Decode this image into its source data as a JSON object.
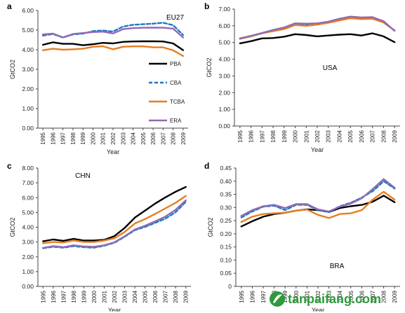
{
  "watermark": {
    "text": "tanpaifang.com",
    "colors": {
      "logo_green": "#2e9a3c",
      "logo_white": "#ffffff"
    }
  },
  "chart_data": [
    {
      "panel": "a",
      "type": "line",
      "title": "EU27",
      "xlabel": "Year",
      "ylabel": "GtCO2",
      "x": [
        "1995",
        "1996",
        "1997",
        "1998",
        "1999",
        "2000",
        "2001",
        "2002",
        "2003",
        "2004",
        "2005",
        "2006",
        "2007",
        "2008",
        "2009"
      ],
      "ylim": [
        0,
        6
      ],
      "yticks": [
        "0.00",
        "1.00",
        "2.00",
        "3.00",
        "4.00",
        "5.00",
        "6.00"
      ],
      "legend": "right",
      "series": [
        {
          "name": "PBA",
          "color": "#000000",
          "dash": "solid",
          "values": [
            4.25,
            4.38,
            4.3,
            4.3,
            4.23,
            4.28,
            4.35,
            4.32,
            4.4,
            4.42,
            4.43,
            4.43,
            4.42,
            4.32,
            3.98
          ]
        },
        {
          "name": "CBA",
          "color": "#1f77c4",
          "dash": "dashed",
          "values": [
            4.72,
            4.8,
            4.62,
            4.78,
            4.82,
            4.95,
            4.98,
            4.93,
            5.18,
            5.27,
            5.3,
            5.33,
            5.38,
            5.25,
            4.75
          ]
        },
        {
          "name": "TCBA",
          "color": "#e67e22",
          "dash": "solid",
          "values": [
            3.97,
            4.05,
            4.0,
            4.02,
            4.05,
            4.15,
            4.18,
            4.02,
            4.15,
            4.17,
            4.17,
            4.12,
            4.12,
            3.97,
            3.68
          ]
        },
        {
          "name": "ERA",
          "color": "#8e6bb3",
          "dash": "solid",
          "values": [
            4.78,
            4.82,
            4.63,
            4.8,
            4.85,
            4.9,
            4.92,
            4.83,
            5.05,
            5.1,
            5.12,
            5.13,
            5.12,
            5.08,
            4.62
          ]
        }
      ]
    },
    {
      "panel": "b",
      "type": "line",
      "title": "USA",
      "xlabel": "Year",
      "ylabel": "GtCO2",
      "x": [
        "1995",
        "1996",
        "1997",
        "1998",
        "1999",
        "2000",
        "2001",
        "2002",
        "2003",
        "2004",
        "2005",
        "2006",
        "2007",
        "2008",
        "2009"
      ],
      "ylim": [
        0,
        7
      ],
      "yticks": [
        "0.00",
        "1.00",
        "2.00",
        "3.00",
        "4.00",
        "5.00",
        "6.00",
        "7.00"
      ],
      "series": [
        {
          "name": "PBA",
          "color": "#000000",
          "dash": "solid",
          "values": [
            4.95,
            5.08,
            5.25,
            5.27,
            5.35,
            5.5,
            5.45,
            5.37,
            5.42,
            5.47,
            5.5,
            5.42,
            5.55,
            5.37,
            5.02
          ]
        },
        {
          "name": "CBA",
          "color": "#1f77c4",
          "dash": "dashed",
          "values": [
            5.25,
            5.37,
            5.57,
            5.72,
            5.85,
            6.1,
            6.05,
            6.1,
            6.22,
            6.38,
            6.5,
            6.45,
            6.42,
            6.22,
            5.72
          ]
        },
        {
          "name": "TCBA",
          "color": "#e67e22",
          "dash": "solid",
          "values": [
            5.22,
            5.37,
            5.55,
            5.68,
            5.8,
            6.05,
            6.0,
            6.07,
            6.18,
            6.32,
            6.45,
            6.4,
            6.42,
            6.2,
            5.72
          ]
        },
        {
          "name": "ERA",
          "color": "#8e6bb3",
          "dash": "solid",
          "values": [
            5.25,
            5.4,
            5.57,
            5.75,
            5.9,
            6.15,
            6.13,
            6.15,
            6.25,
            6.42,
            6.55,
            6.5,
            6.52,
            6.28,
            5.7
          ]
        }
      ]
    },
    {
      "panel": "c",
      "type": "line",
      "title": "CHN",
      "xlabel": "Year",
      "ylabel": "GtCO2",
      "x": [
        "1995",
        "1996",
        "1997",
        "1998",
        "1999",
        "2000",
        "2001",
        "2002",
        "2003",
        "2004",
        "2005",
        "2006",
        "2007",
        "2008",
        "2009"
      ],
      "ylim": [
        0,
        8
      ],
      "yticks": [
        "0.00",
        "1.00",
        "2.00",
        "3.00",
        "4.00",
        "5.00",
        "6.00",
        "7.00",
        "8.00"
      ],
      "series": [
        {
          "name": "PBA",
          "color": "#000000",
          "dash": "solid",
          "values": [
            3.05,
            3.17,
            3.08,
            3.22,
            3.1,
            3.1,
            3.15,
            3.4,
            3.95,
            4.65,
            5.12,
            5.6,
            6.02,
            6.4,
            6.72
          ]
        },
        {
          "name": "CBA",
          "color": "#1f77c4",
          "dash": "dashed",
          "values": [
            2.58,
            2.68,
            2.62,
            2.72,
            2.65,
            2.62,
            2.75,
            2.95,
            3.35,
            3.8,
            4.02,
            4.3,
            4.58,
            5.02,
            5.72
          ]
        },
        {
          "name": "TCBA",
          "color": "#e67e22",
          "dash": "solid",
          "values": [
            2.92,
            3.0,
            2.97,
            3.1,
            3.0,
            3.0,
            3.1,
            3.25,
            3.68,
            4.25,
            4.55,
            4.9,
            5.28,
            5.65,
            6.12
          ]
        },
        {
          "name": "ERA",
          "color": "#8e6bb3",
          "dash": "solid",
          "values": [
            2.6,
            2.72,
            2.65,
            2.78,
            2.7,
            2.68,
            2.78,
            2.98,
            3.38,
            3.85,
            4.1,
            4.4,
            4.72,
            5.18,
            5.82
          ]
        }
      ]
    },
    {
      "panel": "d",
      "type": "line",
      "title": "BRA",
      "xlabel": "Year",
      "ylabel": "GtCO2",
      "x": [
        "1995",
        "1996",
        "1997",
        "1998",
        "1999",
        "2000",
        "2001",
        "2002",
        "2003",
        "2004",
        "2005",
        "2006",
        "2007",
        "2008",
        "2009"
      ],
      "ylim": [
        0,
        0.45
      ],
      "yticks": [
        "0",
        "0.05",
        "0.10",
        "0.15",
        "0.20",
        "0.25",
        "0.30",
        "0.35",
        "0.40",
        "0.45"
      ],
      "series": [
        {
          "name": "PBA",
          "color": "#000000",
          "dash": "solid",
          "values": [
            0.228,
            0.248,
            0.265,
            0.275,
            0.28,
            0.288,
            0.293,
            0.29,
            0.283,
            0.298,
            0.305,
            0.31,
            0.322,
            0.345,
            0.32
          ]
        },
        {
          "name": "CBA",
          "color": "#1f77c4",
          "dash": "dashed",
          "values": [
            0.262,
            0.285,
            0.303,
            0.307,
            0.29,
            0.31,
            0.31,
            0.29,
            0.283,
            0.305,
            0.318,
            0.338,
            0.362,
            0.4,
            0.372
          ]
        },
        {
          "name": "TCBA",
          "color": "#e67e22",
          "dash": "solid",
          "values": [
            0.245,
            0.265,
            0.275,
            0.278,
            0.28,
            0.288,
            0.292,
            0.272,
            0.26,
            0.275,
            0.278,
            0.29,
            0.33,
            0.36,
            0.33
          ]
        },
        {
          "name": "ERA",
          "color": "#8e6bb3",
          "dash": "solid",
          "values": [
            0.268,
            0.29,
            0.305,
            0.31,
            0.298,
            0.313,
            0.313,
            0.293,
            0.285,
            0.303,
            0.315,
            0.335,
            0.37,
            0.408,
            0.375
          ]
        }
      ]
    }
  ]
}
